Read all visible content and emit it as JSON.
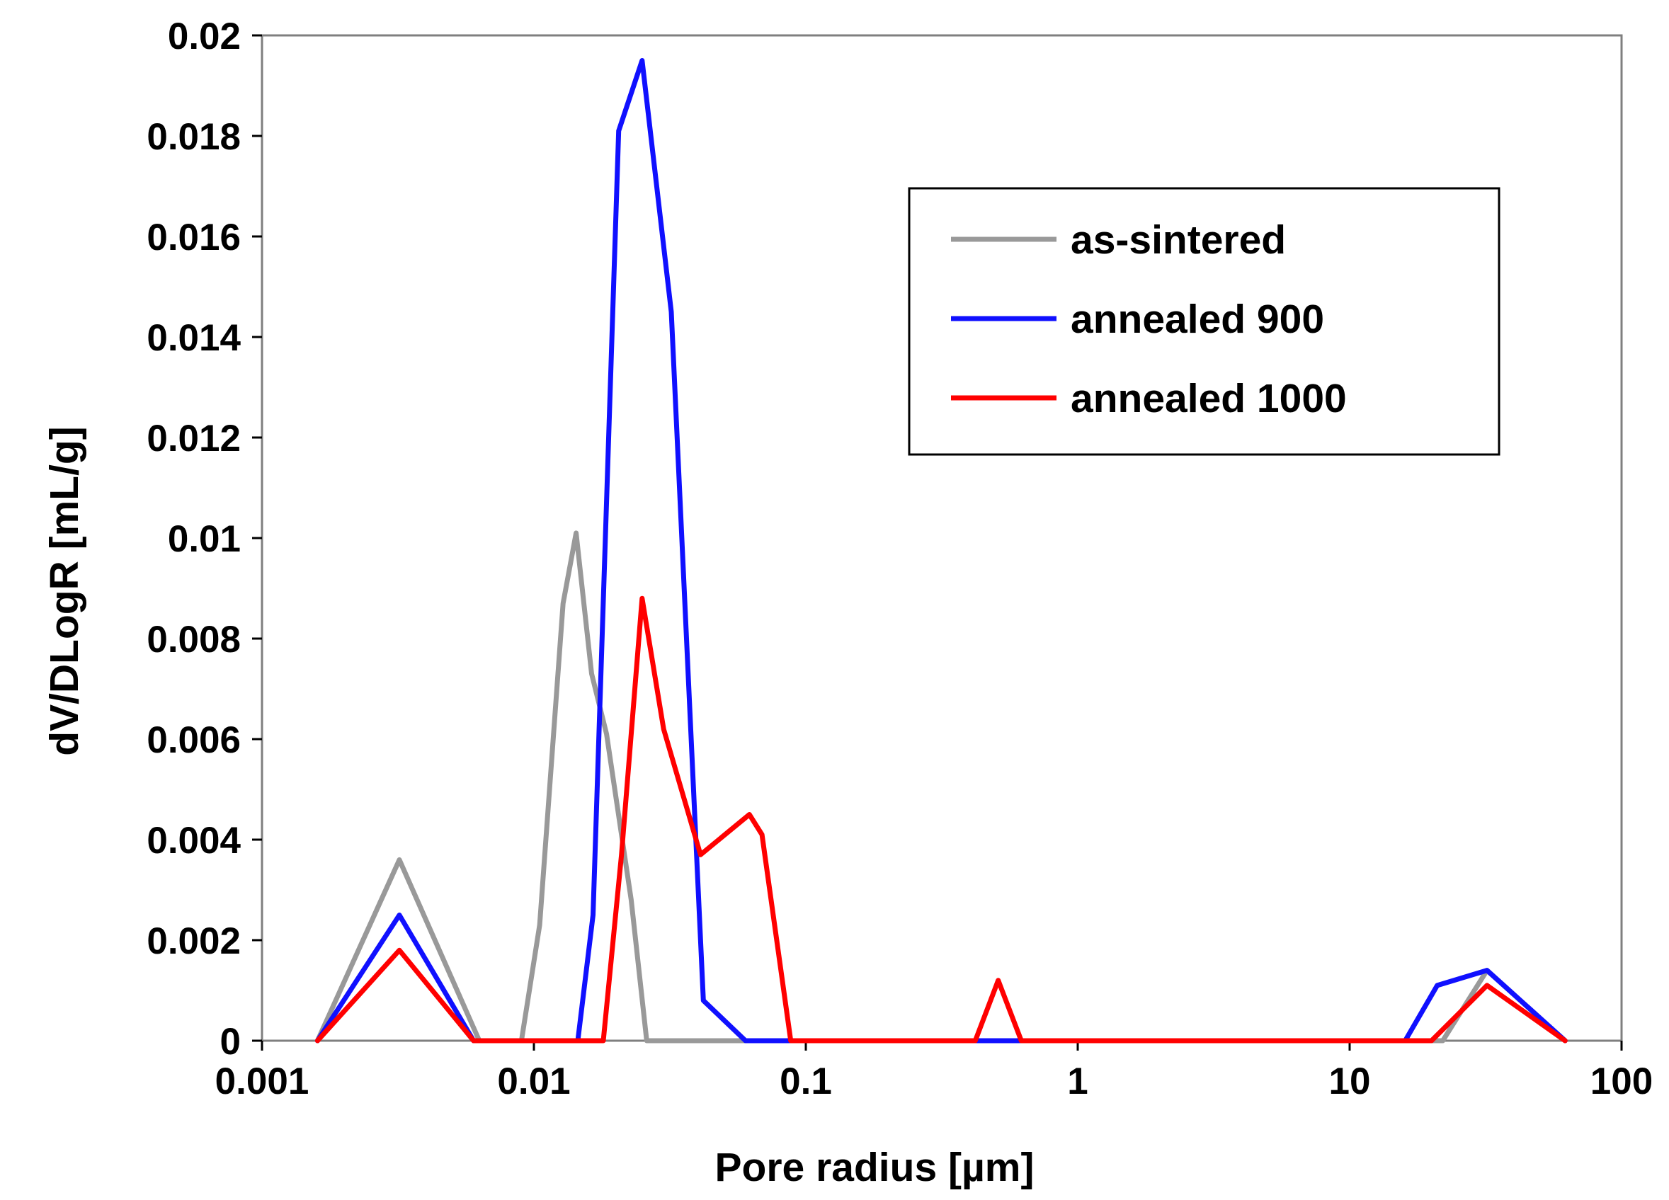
{
  "chart_data": {
    "type": "line",
    "title": "",
    "xlabel": "Pore radius [µm]",
    "ylabel": "dV/DLogR [mL/g]",
    "xscale": "log",
    "xlim": [
      0.001,
      100
    ],
    "ylim": [
      0,
      0.02
    ],
    "x_tick_labels": [
      "0.001",
      "0.01",
      "0.1",
      "1",
      "10",
      "100"
    ],
    "y_tick_labels": [
      "0",
      "0.002",
      "0.004",
      "0.006",
      "0.008",
      "0.01",
      "0.012",
      "0.014",
      "0.016",
      "0.018",
      "0.02"
    ],
    "grid": false,
    "legend_position": "top-right",
    "series": [
      {
        "name": "as-sintered",
        "color": "#999999",
        "points": [
          [
            0.0016,
            0
          ],
          [
            0.0032,
            0.0036
          ],
          [
            0.0063,
            0
          ],
          [
            0.009,
            0
          ],
          [
            0.0105,
            0.0023
          ],
          [
            0.0128,
            0.0087
          ],
          [
            0.0143,
            0.0101
          ],
          [
            0.0163,
            0.0073
          ],
          [
            0.0185,
            0.0061
          ],
          [
            0.0228,
            0.0028
          ],
          [
            0.026,
            0
          ],
          [
            0.04,
            0
          ],
          [
            20,
            0
          ],
          [
            22,
            0
          ],
          [
            32,
            0.0014
          ],
          [
            62,
            0
          ]
        ]
      },
      {
        "name": "annealed 900",
        "color": "#1010ff",
        "points": [
          [
            0.0016,
            0
          ],
          [
            0.0032,
            0.0025
          ],
          [
            0.006,
            0
          ],
          [
            0.0145,
            0
          ],
          [
            0.0165,
            0.0025
          ],
          [
            0.0205,
            0.0181
          ],
          [
            0.025,
            0.0195
          ],
          [
            0.032,
            0.0145
          ],
          [
            0.042,
            0.0008
          ],
          [
            0.06,
            0
          ],
          [
            16,
            0
          ],
          [
            21,
            0.0011
          ],
          [
            32,
            0.0014
          ],
          [
            62,
            0
          ]
        ]
      },
      {
        "name": "annealed 1000",
        "color": "#ff0000",
        "points": [
          [
            0.0016,
            0
          ],
          [
            0.0032,
            0.0018
          ],
          [
            0.006,
            0
          ],
          [
            0.018,
            0
          ],
          [
            0.021,
            0.0037
          ],
          [
            0.025,
            0.0088
          ],
          [
            0.03,
            0.0062
          ],
          [
            0.041,
            0.0037
          ],
          [
            0.062,
            0.0045
          ],
          [
            0.069,
            0.0041
          ],
          [
            0.088,
            0
          ],
          [
            0.42,
            0
          ],
          [
            0.51,
            0.0012
          ],
          [
            0.62,
            0
          ],
          [
            20,
            0
          ],
          [
            32,
            0.0011
          ],
          [
            62,
            0
          ]
        ]
      }
    ]
  }
}
